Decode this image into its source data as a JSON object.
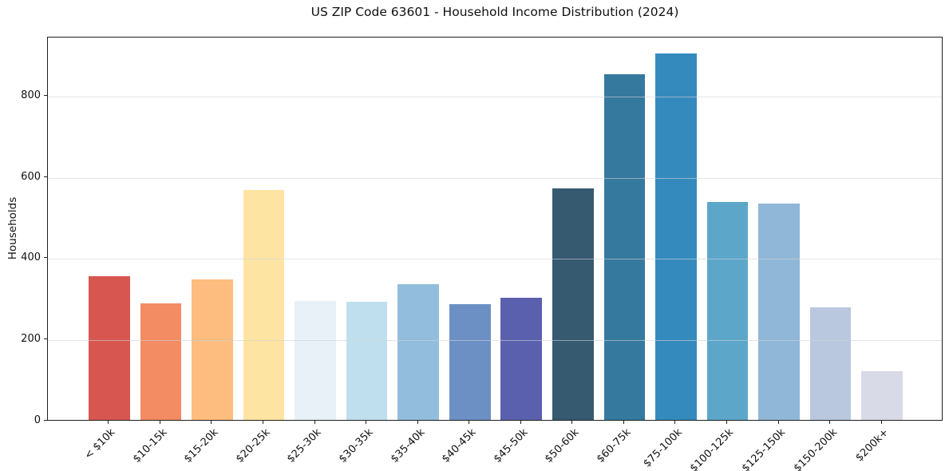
{
  "chart_data": {
    "type": "bar",
    "title": "US ZIP Code 63601 - Household Income Distribution (2024)",
    "xlabel": "",
    "ylabel": "Households",
    "categories": [
      "< $10k",
      "$10-15k",
      "$15-20k",
      "$20-25k",
      "$25-30k",
      "$30-35k",
      "$35-40k",
      "$40-45k",
      "$45-50k",
      "$50-60k",
      "$60-75k",
      "$75-100k",
      "$100-125k",
      "$125-150k",
      "$150-200k",
      "$200k+"
    ],
    "values": [
      354,
      286,
      345,
      565,
      292,
      291,
      334,
      285,
      300,
      570,
      850,
      901,
      537,
      533,
      278,
      120
    ],
    "bar_colors": [
      "#d7564f",
      "#f38b63",
      "#fcbd7e",
      "#fde4a3",
      "#e7f1f7",
      "#c0dfee",
      "#93bddc",
      "#6c90c4",
      "#5b60ae",
      "#365a70",
      "#36799e",
      "#358abd",
      "#5ca6ca",
      "#91b7d8",
      "#b9c8df",
      "#d9dae7"
    ],
    "yticks": [
      0,
      200,
      400,
      600,
      800
    ],
    "ylim": [
      0,
      945
    ],
    "grid": true,
    "legend": false,
    "axis_color": "#1f1f1f",
    "grid_color": "#e8e8e8",
    "background_color": "#ffffff"
  }
}
